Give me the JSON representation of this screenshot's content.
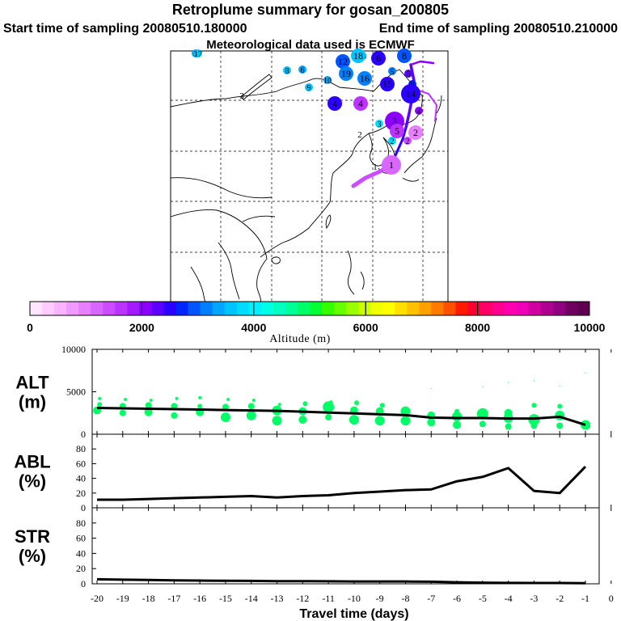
{
  "header": {
    "title": "Retroplume summary for gosan_200805",
    "start_time": "Start time of sampling 20080510.180000",
    "end_time": "End time of sampling 20080510.210000",
    "met_data": "Meteorological data used is ECMWF"
  },
  "colorbar": {
    "label": "Altitude (m)",
    "ticks": [
      "0",
      "2000",
      "4000",
      "6000",
      "8000",
      "10000"
    ],
    "colors": [
      "#ffe6ff",
      "#ffccff",
      "#f9b3ff",
      "#f099ff",
      "#e680ff",
      "#d966ff",
      "#cc4dff",
      "#bb33ff",
      "#a31aff",
      "#8c00ff",
      "#5c00ff",
      "#2b00ff",
      "#0026ff",
      "#0055ff",
      "#0080ff",
      "#00a6ff",
      "#00c4ff",
      "#00dcff",
      "#00f0ff",
      "#00ffe6",
      "#00ffc0",
      "#00ff96",
      "#00ff66",
      "#00ff33",
      "#33ff00",
      "#66ff00",
      "#99ff00",
      "#ccff00",
      "#f0ff00",
      "#ffff00",
      "#ffe000",
      "#ffc000",
      "#ff9f00",
      "#ff7a00",
      "#ff5000",
      "#ff1a00",
      "#ff0033",
      "#ff0066",
      "#ff0090",
      "#ff00b0",
      "#f000b8",
      "#d000a0",
      "#b00090",
      "#900080",
      "#700060",
      "#600050"
    ]
  },
  "map": {
    "markers": [
      {
        "label": "1",
        "color": "#d966ff",
        "size": "large"
      },
      {
        "label": "2",
        "color": "#00dcff",
        "size": "small"
      },
      {
        "label": "2",
        "color": "#cc4dff",
        "size": "small"
      },
      {
        "label": "2",
        "color": "#e680ff",
        "size": "medium"
      },
      {
        "label": "3",
        "color": "#00dcff",
        "size": "small"
      },
      {
        "label": "3",
        "color": "#8c00ff",
        "size": "large"
      },
      {
        "label": "4",
        "color": "#2b00ff",
        "size": "medium"
      },
      {
        "label": "4",
        "color": "#bb33ff",
        "size": "medium"
      },
      {
        "label": "4",
        "color": "#8c00ff",
        "size": "small"
      },
      {
        "label": "5",
        "color": "#0080ff",
        "size": "small"
      },
      {
        "label": "5",
        "color": "#5c00ff",
        "size": "small"
      },
      {
        "label": "5",
        "color": "#bb33ff",
        "size": "medium"
      },
      {
        "label": "6",
        "color": "#00a6ff",
        "size": "small"
      },
      {
        "label": "6",
        "color": "#2b00ff",
        "size": "medium"
      },
      {
        "label": "7",
        "color": "#00a6ff",
        "size": "small"
      },
      {
        "label": "8",
        "color": "#00c4ff",
        "size": "small"
      },
      {
        "label": "8",
        "color": "#0055ff",
        "size": "medium"
      },
      {
        "label": "9",
        "color": "#0026ff",
        "size": "small"
      },
      {
        "label": "9",
        "color": "#00c4ff",
        "size": "small"
      },
      {
        "label": "10",
        "color": "#00a6ff",
        "size": "small"
      },
      {
        "label": "12",
        "color": "#0055ff",
        "size": "medium"
      },
      {
        "label": "13",
        "color": "#00c4ff",
        "size": "small"
      },
      {
        "label": "14",
        "color": "#2b00ff",
        "size": "large"
      },
      {
        "label": "15",
        "color": "#2b00ff",
        "size": "medium"
      },
      {
        "label": "16",
        "color": "#0080ff",
        "size": "medium"
      },
      {
        "label": "17",
        "color": "#00c4ff",
        "size": "small"
      },
      {
        "label": "18",
        "color": "#00c4ff",
        "size": "medium"
      },
      {
        "label": "19",
        "color": "#0080ff",
        "size": "medium"
      }
    ],
    "contour_labels": [
      "3",
      "2",
      "1"
    ]
  },
  "chart_data": [
    {
      "type": "line",
      "panel": "ALT",
      "ylabel": "ALT\n(m)",
      "ylabel_lines": [
        "ALT",
        "(m)"
      ],
      "ylim": [
        0,
        10000
      ],
      "yticks": [
        0,
        5000,
        10000
      ],
      "ytick_labels": [
        "0",
        "5000",
        "10000"
      ],
      "xlim": [
        -20,
        -0.5
      ],
      "x": [
        -20,
        -19,
        -18,
        -17,
        -16,
        -15,
        -14,
        -13,
        -12,
        -11,
        -10,
        -9,
        -8,
        -7,
        -6,
        -5,
        -4,
        -3,
        -2,
        -1
      ],
      "mean_altitude": [
        3100,
        3050,
        3000,
        2950,
        2900,
        2850,
        2800,
        2750,
        2650,
        2550,
        2450,
        2350,
        2250,
        1950,
        1900,
        1900,
        1850,
        1850,
        2050,
        1100
      ],
      "dot_color": "#00ff66",
      "scatter_points": [
        {
          "x": -20.0,
          "y": 2800,
          "s": 5
        },
        {
          "x": -19.9,
          "y": 3500,
          "s": 3
        },
        {
          "x": -19.9,
          "y": 4200,
          "s": 2
        },
        {
          "x": -19.0,
          "y": 2500,
          "s": 4
        },
        {
          "x": -19.0,
          "y": 3300,
          "s": 4
        },
        {
          "x": -18.9,
          "y": 4100,
          "s": 2
        },
        {
          "x": -18.0,
          "y": 2600,
          "s": 5
        },
        {
          "x": -18.0,
          "y": 3400,
          "s": 4
        },
        {
          "x": -17.9,
          "y": 4000,
          "s": 2
        },
        {
          "x": -17.0,
          "y": 2200,
          "s": 4
        },
        {
          "x": -17.0,
          "y": 3300,
          "s": 4
        },
        {
          "x": -16.9,
          "y": 4200,
          "s": 2
        },
        {
          "x": -16.0,
          "y": 2600,
          "s": 5
        },
        {
          "x": -16.0,
          "y": 3300,
          "s": 3
        },
        {
          "x": -16.0,
          "y": 4300,
          "s": 2
        },
        {
          "x": -15.0,
          "y": 2000,
          "s": 6
        },
        {
          "x": -15.0,
          "y": 3200,
          "s": 4
        },
        {
          "x": -14.9,
          "y": 4100,
          "s": 2
        },
        {
          "x": -14.0,
          "y": 2200,
          "s": 6
        },
        {
          "x": -14.0,
          "y": 3300,
          "s": 4
        },
        {
          "x": -13.9,
          "y": 4000,
          "s": 2
        },
        {
          "x": -13.0,
          "y": 1600,
          "s": 6
        },
        {
          "x": -13.0,
          "y": 2800,
          "s": 6
        },
        {
          "x": -12.9,
          "y": 3500,
          "s": 2
        },
        {
          "x": -12.0,
          "y": 1700,
          "s": 5
        },
        {
          "x": -12.0,
          "y": 2700,
          "s": 5
        },
        {
          "x": -11.9,
          "y": 3600,
          "s": 3
        },
        {
          "x": -11.0,
          "y": 2000,
          "s": 4
        },
        {
          "x": -11.0,
          "y": 3200,
          "s": 7
        },
        {
          "x": -10.9,
          "y": 3800,
          "s": 2
        },
        {
          "x": -10.0,
          "y": 1700,
          "s": 6
        },
        {
          "x": -10.0,
          "y": 2800,
          "s": 5
        },
        {
          "x": -9.9,
          "y": 3700,
          "s": 3
        },
        {
          "x": -9.0,
          "y": 1600,
          "s": 6
        },
        {
          "x": -9.0,
          "y": 2700,
          "s": 5
        },
        {
          "x": -8.9,
          "y": 3400,
          "s": 3
        },
        {
          "x": -8.0,
          "y": 1600,
          "s": 6
        },
        {
          "x": -8.0,
          "y": 2700,
          "s": 6
        },
        {
          "x": -7.0,
          "y": 1400,
          "s": 5
        },
        {
          "x": -7.0,
          "y": 2200,
          "s": 5
        },
        {
          "x": -6.0,
          "y": 1100,
          "s": 5
        },
        {
          "x": -6.0,
          "y": 2100,
          "s": 6
        },
        {
          "x": -6.0,
          "y": 2700,
          "s": 3
        },
        {
          "x": -5.0,
          "y": 1200,
          "s": 4
        },
        {
          "x": -5.0,
          "y": 2400,
          "s": 7
        },
        {
          "x": -4.0,
          "y": 900,
          "s": 4
        },
        {
          "x": -4.0,
          "y": 1900,
          "s": 6
        },
        {
          "x": -4.0,
          "y": 2500,
          "s": 5
        },
        {
          "x": -3.0,
          "y": 1000,
          "s": 4
        },
        {
          "x": -3.0,
          "y": 1700,
          "s": 7
        },
        {
          "x": -3.0,
          "y": 3400,
          "s": 3
        },
        {
          "x": -2.0,
          "y": 1000,
          "s": 4
        },
        {
          "x": -2.0,
          "y": 2200,
          "s": 6
        },
        {
          "x": -2.0,
          "y": 3300,
          "s": 3
        },
        {
          "x": -1.0,
          "y": 1100,
          "s": 6
        },
        {
          "x": -0.9,
          "y": 900,
          "s": 3
        },
        {
          "x": -7.0,
          "y": 5400,
          "s": 0.6
        },
        {
          "x": -5.0,
          "y": 5600,
          "s": 0.6
        },
        {
          "x": -4.0,
          "y": 6100,
          "s": 0.6
        },
        {
          "x": -3.0,
          "y": 6300,
          "s": 0.6
        },
        {
          "x": -2.0,
          "y": 5700,
          "s": 0.6
        },
        {
          "x": -1.0,
          "y": 7200,
          "s": 0.6
        }
      ]
    },
    {
      "type": "line",
      "panel": "ABL",
      "ylabel": "ABL\n(%)",
      "ylabel_lines": [
        "ABL",
        "(%)"
      ],
      "ylim": [
        0,
        100
      ],
      "yticks": [
        0,
        20,
        40,
        60,
        80
      ],
      "ytick_labels": [
        "0",
        "20",
        "40",
        "60",
        "80"
      ],
      "xlim": [
        -20,
        -0.5
      ],
      "x": [
        -20,
        -19,
        -18,
        -17,
        -16,
        -15,
        -14,
        -13,
        -12,
        -11,
        -10,
        -9,
        -8,
        -7,
        -6,
        -5,
        -4,
        -3,
        -2,
        -1
      ],
      "values": [
        11,
        11,
        12,
        13,
        14,
        15,
        16,
        14,
        16,
        17,
        20,
        22,
        24,
        25,
        36,
        42,
        54,
        23,
        20,
        56
      ]
    },
    {
      "type": "line",
      "panel": "STR",
      "ylabel": "STR\n(%)",
      "ylabel_lines": [
        "STR",
        "(%)"
      ],
      "ylim": [
        0,
        100
      ],
      "yticks": [
        0,
        20,
        40,
        60,
        80
      ],
      "ytick_labels": [
        "0",
        "20",
        "40",
        "60",
        "80"
      ],
      "xlim": [
        -20,
        -0.5
      ],
      "x": [
        -20,
        -19,
        -18,
        -17,
        -16,
        -15,
        -14,
        -13,
        -12,
        -11,
        -10,
        -9,
        -8,
        -7,
        -6,
        -5,
        -4,
        -3,
        -2,
        -1
      ],
      "values": [
        6,
        5.5,
        5,
        4.5,
        4.2,
        4,
        3.8,
        3.5,
        3.5,
        3.3,
        3,
        3,
        3,
        2.8,
        2,
        1.5,
        1.2,
        1,
        1,
        0.8
      ],
      "xlabel": "Travel time (days)",
      "xticks": [
        -20,
        -19,
        -18,
        -17,
        -16,
        -15,
        -14,
        -13,
        -12,
        -11,
        -10,
        -9,
        -8,
        -7,
        -6,
        -5,
        -4,
        -3,
        -2,
        -1,
        0
      ],
      "xtick_labels": [
        "-20",
        "-19",
        "-18",
        "-17",
        "-16",
        "-15",
        "-14",
        "-13",
        "-12",
        "-11",
        "-10",
        "-9",
        "-8",
        "-7",
        "-6",
        "-5",
        "-4",
        "-3",
        "-2",
        "-1",
        "0"
      ]
    }
  ]
}
